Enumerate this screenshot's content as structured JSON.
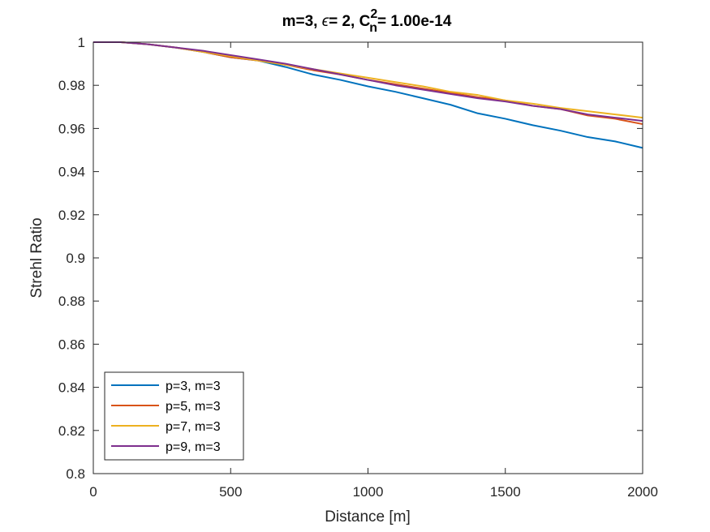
{
  "chart_data": {
    "type": "line",
    "title": {
      "prefix": "m=3, ",
      "epsilon_symbol": "ϵ",
      "eq_part": "= 2, C",
      "superscript": "2",
      "subscript": "n",
      "suffix": "= 1.00e-14"
    },
    "xlabel": "Distance [m]",
    "ylabel": "Strehl Ratio",
    "xlim": [
      0,
      2000
    ],
    "ylim": [
      0.8,
      1.0
    ],
    "xticks": [
      0,
      500,
      1000,
      1500,
      2000
    ],
    "xtick_labels": [
      "0",
      "500",
      "1000",
      "1500",
      "2000"
    ],
    "yticks": [
      0.8,
      0.82,
      0.84,
      0.86,
      0.88,
      0.9,
      0.92,
      0.94,
      0.96,
      0.98,
      1.0
    ],
    "ytick_labels": [
      "0.8",
      "0.82",
      "0.84",
      "0.86",
      "0.88",
      "0.9",
      "0.92",
      "0.94",
      "0.96",
      "0.98",
      "1"
    ],
    "grid": false,
    "legend_position": "bottom-left",
    "x": [
      0,
      100,
      200,
      300,
      400,
      500,
      600,
      700,
      800,
      900,
      1000,
      1100,
      1200,
      1300,
      1400,
      1500,
      1600,
      1700,
      1800,
      1900,
      2000
    ],
    "series": [
      {
        "name": "p=3, m=3",
        "color": "#0072BD",
        "values": [
          1.0,
          1.0,
          0.999,
          0.9975,
          0.9955,
          0.993,
          0.9915,
          0.9885,
          0.985,
          0.9825,
          0.9795,
          0.977,
          0.974,
          0.971,
          0.967,
          0.9645,
          0.9615,
          0.959,
          0.956,
          0.954,
          0.951
        ]
      },
      {
        "name": "p=5, m=3",
        "color": "#D95319",
        "values": [
          1.0,
          1.0,
          0.999,
          0.9975,
          0.9955,
          0.993,
          0.9915,
          0.9895,
          0.987,
          0.985,
          0.9825,
          0.9805,
          0.9785,
          0.9765,
          0.9745,
          0.973,
          0.9705,
          0.969,
          0.966,
          0.9645,
          0.962
        ]
      },
      {
        "name": "p=7, m=3",
        "color": "#EDB120",
        "values": [
          1.0,
          1.0,
          0.999,
          0.9975,
          0.9955,
          0.9935,
          0.9915,
          0.9895,
          0.9875,
          0.9855,
          0.9835,
          0.9815,
          0.9795,
          0.977,
          0.9755,
          0.973,
          0.9715,
          0.9695,
          0.968,
          0.9665,
          0.965
        ]
      },
      {
        "name": "p=9, m=3",
        "color": "#7E2F8E",
        "values": [
          1.0,
          1.0,
          0.999,
          0.9975,
          0.996,
          0.994,
          0.992,
          0.99,
          0.9875,
          0.985,
          0.9825,
          0.98,
          0.978,
          0.976,
          0.974,
          0.9725,
          0.9705,
          0.969,
          0.9665,
          0.965,
          0.9635
        ]
      }
    ]
  }
}
